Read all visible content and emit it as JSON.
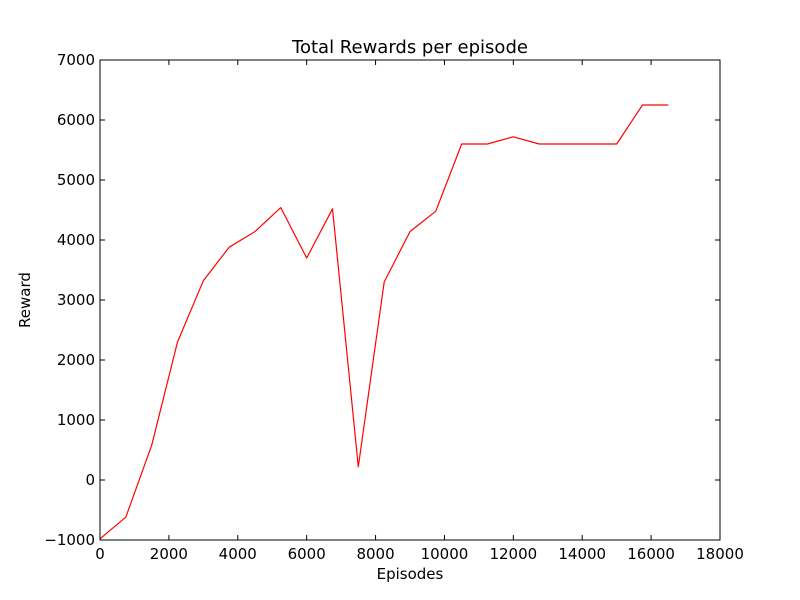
{
  "chart_data": {
    "type": "line",
    "title": "Total Rewards per episode",
    "xlabel": "Episodes",
    "ylabel": "Reward",
    "xlim": [
      0,
      18000
    ],
    "ylim": [
      -1000,
      7000
    ],
    "xticks": [
      0,
      2000,
      4000,
      6000,
      8000,
      10000,
      12000,
      14000,
      16000,
      18000
    ],
    "yticks": [
      -1000,
      0,
      1000,
      2000,
      3000,
      4000,
      5000,
      6000,
      7000
    ],
    "xtick_labels": [
      "0",
      "2000",
      "4000",
      "6000",
      "8000",
      "10000",
      "12000",
      "14000",
      "16000",
      "18000"
    ],
    "ytick_labels": [
      "−1000",
      "0",
      "1000",
      "2000",
      "3000",
      "4000",
      "5000",
      "6000",
      "7000"
    ],
    "grid": false,
    "series": [
      {
        "color": "#ff0000",
        "x": [
          0,
          750,
          1500,
          2250,
          3000,
          3750,
          4500,
          5250,
          6000,
          6750,
          7500,
          8250,
          9000,
          9750,
          10500,
          11250,
          12000,
          12750,
          13500,
          14250,
          15000,
          15750,
          16500
        ],
        "y": [
          -980,
          -620,
          580,
          2300,
          3320,
          3880,
          4140,
          4540,
          3700,
          4520,
          220,
          3300,
          4140,
          4480,
          5600,
          5600,
          5720,
          5600,
          5600,
          5600,
          5600,
          6250,
          6250
        ]
      }
    ]
  }
}
